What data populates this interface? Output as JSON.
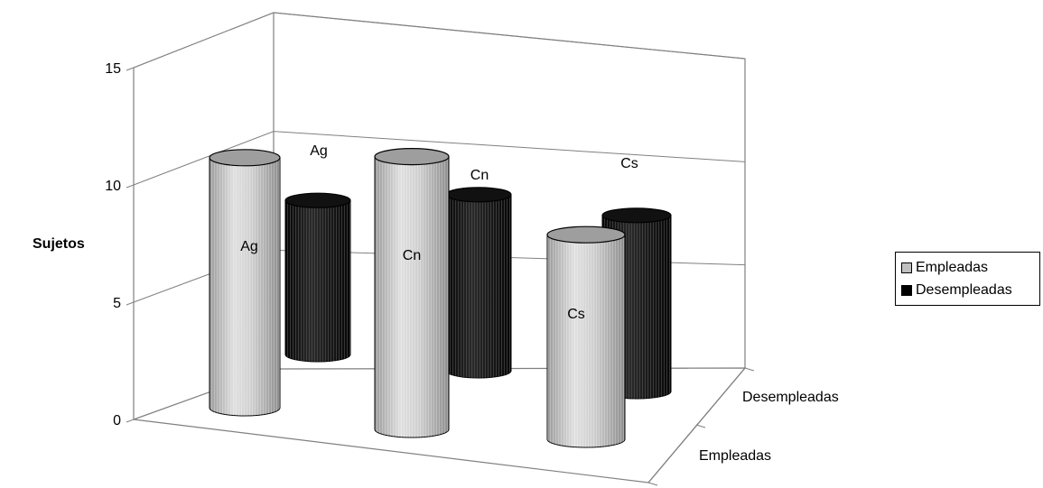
{
  "chart_data": {
    "type": "bar",
    "style": "3d-cylinder",
    "categories": [
      "Ag",
      "Cn",
      "Cs"
    ],
    "series": [
      {
        "name": "Empleadas",
        "values": [
          11,
          12,
          9
        ],
        "color": "#c0c0c0"
      },
      {
        "name": "Desempleadas",
        "values": [
          7,
          8,
          8
        ],
        "color": "#1a1a1a"
      }
    ],
    "ylabel": "Sujetos",
    "ylim": [
      0,
      15
    ],
    "yticks": [
      0,
      5,
      10,
      15
    ],
    "depth_labels": [
      "Empleadas",
      "Desempleadas"
    ],
    "grid": true,
    "legend_position": "right"
  }
}
